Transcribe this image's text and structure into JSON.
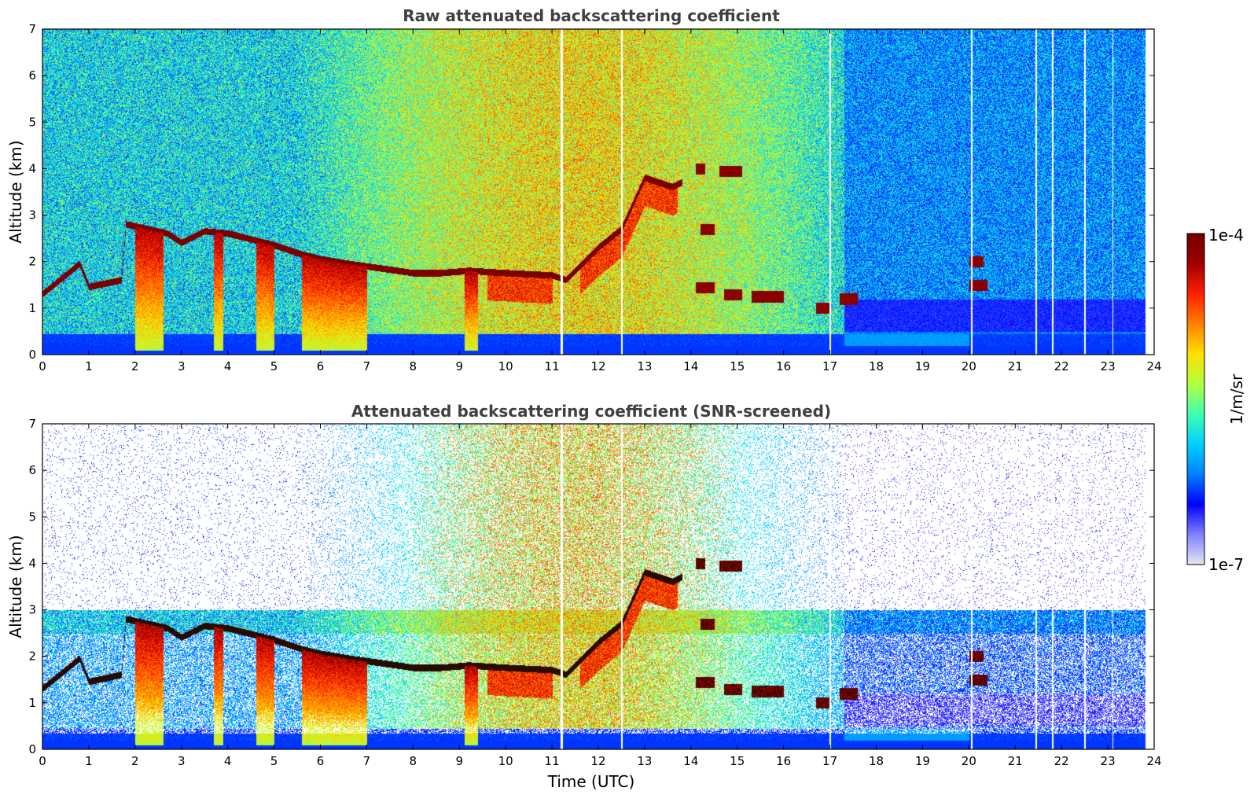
{
  "chart_data": [
    {
      "type": "heatmap",
      "title": "Raw attenuated backscattering coefficient",
      "xlabel": "",
      "ylabel": "Altitude (km)",
      "xlim": [
        0,
        24
      ],
      "ylim": [
        0,
        7
      ],
      "x_ticks": [
        "0",
        "1",
        "2",
        "3",
        "4",
        "5",
        "6",
        "7",
        "8",
        "9",
        "10",
        "11",
        "12",
        "13",
        "14",
        "15",
        "16",
        "17",
        "18",
        "19",
        "20",
        "21",
        "22",
        "23",
        "24"
      ],
      "y_ticks": [
        "0",
        "1",
        "2",
        "3",
        "4",
        "5",
        "6",
        "7"
      ],
      "colormap": "jet",
      "grid": false,
      "screened": false,
      "cloud_layers": [
        {
          "t": 0.0,
          "alt": 1.3
        },
        {
          "t": 0.5,
          "alt": 1.5
        },
        {
          "t": 0.8,
          "alt": 1.95
        },
        {
          "t": 1.2,
          "alt": 1.5
        },
        {
          "t": 1.5,
          "alt": 1.6
        },
        {
          "t": 1.8,
          "alt": 2.8
        },
        {
          "t": 2.5,
          "alt": 2.7
        },
        {
          "t": 2.8,
          "alt": 2.4
        },
        {
          "t": 3.2,
          "alt": 2.6
        },
        {
          "t": 3.6,
          "alt": 2.65
        },
        {
          "t": 4.0,
          "alt": 2.6
        },
        {
          "t": 4.5,
          "alt": 2.5
        },
        {
          "t": 5.0,
          "alt": 2.4
        },
        {
          "t": 5.5,
          "alt": 2.2
        },
        {
          "t": 6.0,
          "alt": 2.0
        },
        {
          "t": 6.5,
          "alt": 2.0
        },
        {
          "t": 7.0,
          "alt": 1.9
        },
        {
          "t": 7.5,
          "alt": 1.8
        },
        {
          "t": 8.0,
          "alt": 1.75
        },
        {
          "t": 8.5,
          "alt": 1.75
        },
        {
          "t": 9.0,
          "alt": 1.8
        },
        {
          "t": 9.5,
          "alt": 1.75
        },
        {
          "t": 10.0,
          "alt": 1.75
        },
        {
          "t": 10.5,
          "alt": 1.75
        },
        {
          "t": 11.0,
          "alt": 1.7
        },
        {
          "t": 11.3,
          "alt": 1.6
        },
        {
          "t": 12.0,
          "alt": 2.4
        },
        {
          "t": 12.5,
          "alt": 2.8
        },
        {
          "t": 13.0,
          "alt": 3.8
        },
        {
          "t": 13.5,
          "alt": 3.6
        },
        {
          "t": 14.2,
          "alt": 4.0
        },
        {
          "t": 14.9,
          "alt": 3.95
        },
        {
          "t": 14.3,
          "alt": 2.8
        },
        {
          "t": 14.3,
          "alt": 1.45
        },
        {
          "t": 15.6,
          "alt": 1.25
        },
        {
          "t": 16.9,
          "alt": 1.0
        },
        {
          "t": 17.4,
          "alt": 1.2
        },
        {
          "t": 20.1,
          "alt": 2.0
        },
        {
          "t": 20.2,
          "alt": 1.5
        }
      ]
    },
    {
      "type": "heatmap",
      "title": "Attenuated backscattering coefficient (SNR-screened)",
      "xlabel": "Time (UTC)",
      "ylabel": "Altitude (km)",
      "xlim": [
        0,
        24
      ],
      "ylim": [
        0,
        7
      ],
      "x_ticks": [
        "0",
        "1",
        "2",
        "3",
        "4",
        "5",
        "6",
        "7",
        "8",
        "9",
        "10",
        "11",
        "12",
        "13",
        "14",
        "15",
        "16",
        "17",
        "18",
        "19",
        "20",
        "21",
        "22",
        "23",
        "24"
      ],
      "y_ticks": [
        "0",
        "1",
        "2",
        "3",
        "4",
        "5",
        "6",
        "7"
      ],
      "colormap": "jet",
      "grid": false,
      "screened": true
    }
  ],
  "colorbar": {
    "label": "1/m/sr",
    "max_label": "1e-4",
    "min_label": "1e-7",
    "stops": [
      "#e6e6f5",
      "#8080ff",
      "#0000ff",
      "#0080ff",
      "#00d0ff",
      "#40ffb0",
      "#b0ff40",
      "#ffe000",
      "#ff8000",
      "#ff2000",
      "#a00000",
      "#700000"
    ]
  }
}
